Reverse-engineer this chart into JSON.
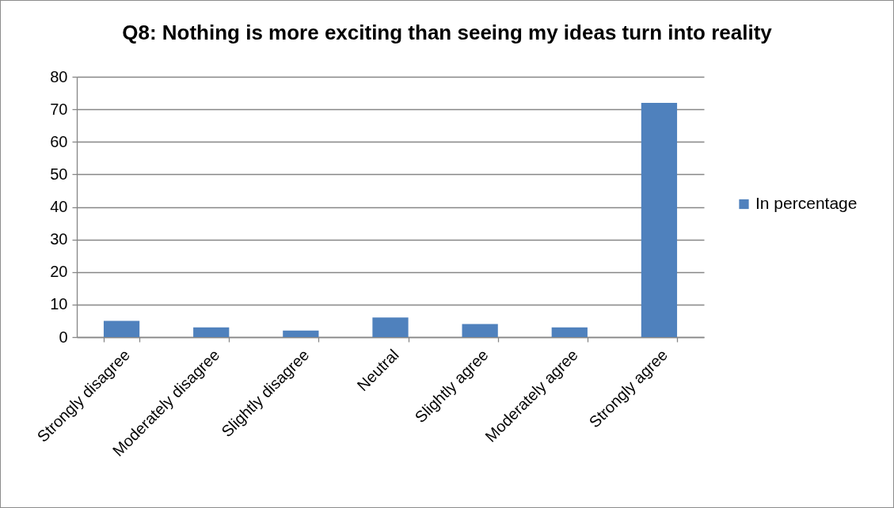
{
  "chart_data": {
    "type": "bar",
    "title": "Q8: Nothing is more exciting than seeing my ideas turn into reality",
    "categories": [
      "Strongly disagree",
      "Moderately disagree",
      "Slightly disagree",
      "Neutral",
      "Slightly agree",
      "Moderately agree",
      "Strongly agree"
    ],
    "series": [
      {
        "name": "In percentage",
        "color": "#4f81bd",
        "values": [
          5,
          3,
          2,
          6,
          4,
          3,
          72
        ]
      }
    ],
    "ylim": [
      0,
      80
    ],
    "yticks": [
      0,
      10,
      20,
      30,
      40,
      50,
      60,
      70,
      80
    ],
    "grid": "y",
    "legend": "right"
  }
}
